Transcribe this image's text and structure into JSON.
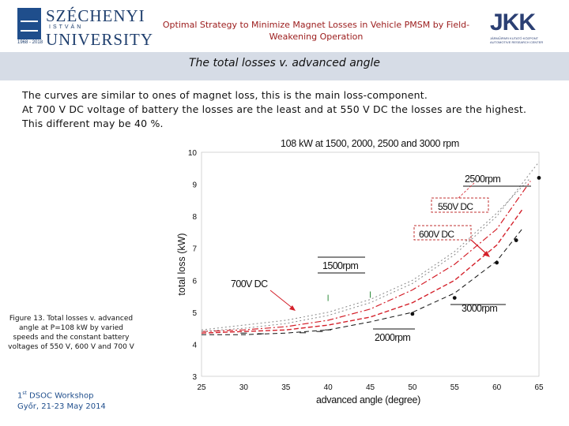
{
  "header": {
    "university_line1": "SZÉCHENYI",
    "university_line2": "ISTVÁN",
    "university_line3": "UNIVERSITY",
    "university_year": "1968 - 2018",
    "title": "Optimal Strategy to Minimize Magnet Losses in Vehicle PMSM by Field-Weakening Operation",
    "right_logo_letters": "JKK",
    "right_logo_line1": "JÁRMŰIPARI KUTATÓ KÖZPONT",
    "right_logo_line2": "AUTOMOTIVE RESEARCH CENTER"
  },
  "slide": {
    "title": "The total losses  v. advanced angle",
    "paragraphs": [
      "The curves are similar to ones of magnet loss, this is the main loss-component.",
      "At 700 V DC voltage of battery the losses are the least and at 550 V DC the losses are the highest.",
      "This different may be 40 %."
    ],
    "caption": "Figure 13. Total losses v. advanced angle at P=108 kW by varied speeds and the constant battery voltages of 550 V, 600 V and 700 V",
    "workshop_prefix": "1",
    "workshop_sup": "st",
    "workshop_line1_rest": " DSOC Workshop",
    "workshop_line2": "Győr, 21-23 May 2014"
  },
  "chart_data": {
    "type": "line",
    "title": "108 kW at 1500, 2000, 2500 and 3000 rpm",
    "xlabel": "advanced angle (degree)",
    "ylabel": "total loss (kW)",
    "xlim": [
      25,
      65
    ],
    "ylim": [
      3,
      10
    ],
    "xticks": [
      "25",
      "30",
      "35",
      "40",
      "45",
      "50",
      "55",
      "60",
      "65"
    ],
    "yticks": [
      "3",
      "4",
      "5",
      "6",
      "7",
      "8",
      "9",
      "10"
    ],
    "colors": {
      "red": "#d4202a",
      "black": "#111111",
      "gray": "#888888",
      "box_border": "#c23030"
    },
    "series": [
      {
        "style": "black-dashed",
        "x": [
          25,
          30,
          35,
          40,
          45,
          50,
          55,
          60,
          63
        ],
        "y": [
          4.3,
          4.3,
          4.35,
          4.45,
          4.7,
          5.0,
          5.6,
          6.6,
          7.6
        ]
      },
      {
        "style": "red-dashed",
        "x": [
          25,
          30,
          35,
          40,
          45,
          50,
          55,
          60,
          63
        ],
        "y": [
          4.35,
          4.4,
          4.45,
          4.6,
          4.85,
          5.3,
          6.0,
          7.1,
          8.2
        ]
      },
      {
        "style": "red-dashdot",
        "x": [
          25,
          30,
          35,
          40,
          45,
          50,
          55,
          60,
          64
        ],
        "y": [
          4.4,
          4.45,
          4.55,
          4.75,
          5.1,
          5.7,
          6.5,
          7.6,
          9.1
        ]
      },
      {
        "style": "gray-dotted",
        "x": [
          25,
          30,
          35,
          40,
          45,
          50,
          55,
          60,
          65
        ],
        "y": [
          4.4,
          4.5,
          4.65,
          4.9,
          5.3,
          5.9,
          6.8,
          8.0,
          9.7
        ]
      },
      {
        "style": "gray-dotted",
        "x": [
          25,
          30,
          35,
          40,
          45,
          50,
          55,
          60,
          64
        ],
        "y": [
          4.45,
          4.6,
          4.75,
          5.0,
          5.4,
          6.0,
          6.9,
          8.1,
          9.2
        ]
      }
    ],
    "markers": {
      "filled_points": [
        {
          "x": 50,
          "y": 4.95
        },
        {
          "x": 55,
          "y": 5.45
        },
        {
          "x": 60,
          "y": 6.55
        },
        {
          "x": 62.3,
          "y": 7.25
        },
        {
          "x": 65,
          "y": 9.2
        }
      ],
      "ticks_black": [
        {
          "x": 30,
          "y": 4.35
        },
        {
          "x": 32,
          "y": 4.33
        },
        {
          "x": 37,
          "y": 4.36
        },
        {
          "x": 39,
          "y": 4.4
        },
        {
          "x": 40,
          "y": 4.45
        }
      ],
      "ticks_green": [
        {
          "x": 40,
          "y": 5.45
        },
        {
          "x": 45,
          "y": 5.55
        }
      ]
    },
    "annotations": {
      "rpm2500": "2500rpm",
      "v550": "550V DC",
      "v600": "600V DC",
      "rpm1500": "1500rpm",
      "v700": "700V DC",
      "rpm3000": "3000rpm",
      "rpm2000": "2000rpm"
    }
  }
}
